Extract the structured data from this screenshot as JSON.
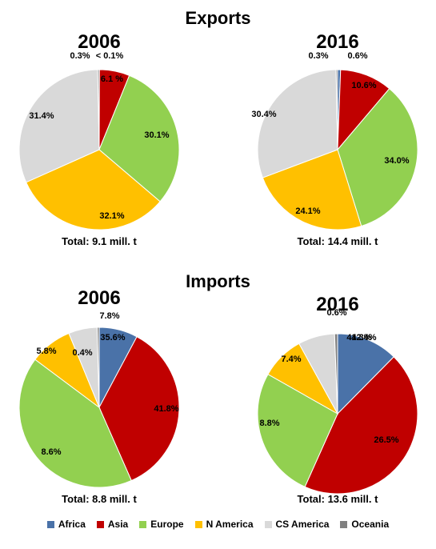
{
  "sections": {
    "exports": "Exports",
    "imports": "Imports"
  },
  "colors": {
    "Africa": "#4a72a8",
    "Asia": "#c00000",
    "Europe": "#92d050",
    "N America": "#ffc000",
    "CS America": "#d9d9d9",
    "Oceania": "#808080"
  },
  "legend": [
    "Africa",
    "Asia",
    "Europe",
    "N America",
    "CS America",
    "Oceania"
  ],
  "chart_data": [
    {
      "type": "pie",
      "group": "Exports",
      "title": "2006",
      "total": "Total: 9.1 mill. t",
      "slices": [
        {
          "region": "Africa",
          "value": 0.05,
          "label": "< 0.1%"
        },
        {
          "region": "Asia",
          "value": 6.1,
          "label": "6.1 %"
        },
        {
          "region": "Europe",
          "value": 30.1,
          "label": "30.1%"
        },
        {
          "region": "N America",
          "value": 32.1,
          "label": "32.1%"
        },
        {
          "region": "CS America",
          "value": 31.4,
          "label": "31.4%"
        },
        {
          "region": "Oceania",
          "value": 0.3,
          "label": "0.3%"
        }
      ]
    },
    {
      "type": "pie",
      "group": "Exports",
      "title": "2016",
      "total": "Total: 14.4 mill. t",
      "slices": [
        {
          "region": "Africa",
          "value": 0.6,
          "label": "0.6%"
        },
        {
          "region": "Asia",
          "value": 10.6,
          "label": "10.6%"
        },
        {
          "region": "Europe",
          "value": 34.0,
          "label": "34.0%"
        },
        {
          "region": "N America",
          "value": 24.1,
          "label": "24.1%"
        },
        {
          "region": "CS America",
          "value": 30.4,
          "label": "30.4%"
        },
        {
          "region": "Oceania",
          "value": 0.3,
          "label": "0.3%"
        }
      ]
    },
    {
      "type": "pie",
      "group": "Imports",
      "title": "2006",
      "total": "Total: 8.8 mill. t",
      "slices": [
        {
          "region": "Africa",
          "value": 7.8,
          "label": "7.8%"
        },
        {
          "region": "Asia",
          "value": 35.6,
          "label": "35.6%"
        },
        {
          "region": "Europe",
          "value": 41.8,
          "label": "41.8%"
        },
        {
          "region": "N America",
          "value": 8.6,
          "label": "8.6%"
        },
        {
          "region": "CS America",
          "value": 5.8,
          "label": "5.8%"
        },
        {
          "region": "Oceania",
          "value": 0.4,
          "label": "0.4%"
        }
      ]
    },
    {
      "type": "pie",
      "group": "Imports",
      "title": "2016",
      "total": "Total: 13.6 mill. t",
      "slices": [
        {
          "region": "Africa",
          "value": 12.4,
          "label": "12.4%"
        },
        {
          "region": "Asia",
          "value": 44.3,
          "label": "44.3%"
        },
        {
          "region": "Europe",
          "value": 26.5,
          "label": "26.5%"
        },
        {
          "region": "N America",
          "value": 8.8,
          "label": "8.8%"
        },
        {
          "region": "CS America",
          "value": 7.4,
          "label": "7.4%"
        },
        {
          "region": "Oceania",
          "value": 0.6,
          "label": "0.6%"
        }
      ]
    }
  ]
}
